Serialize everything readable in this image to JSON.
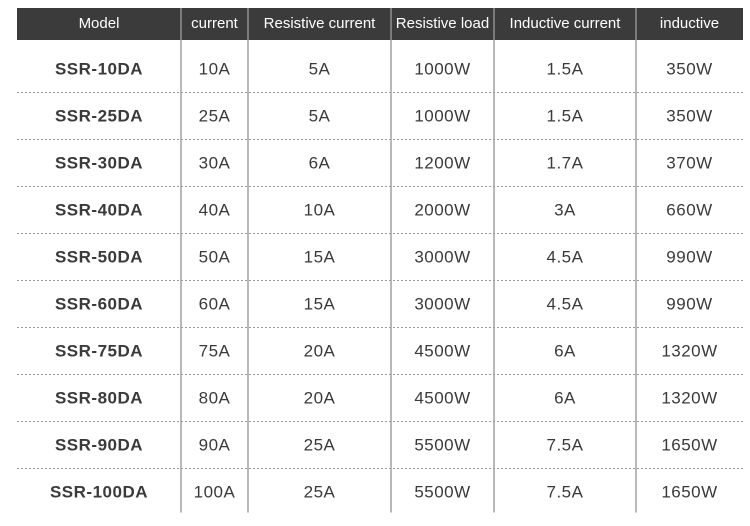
{
  "table": {
    "header": [
      "Model",
      "current",
      "Resistive current",
      "Resistive load",
      "Inductive current",
      "inductive"
    ],
    "rows": [
      [
        "SSR-10DA",
        "10A",
        "5A",
        "1000W",
        "1.5A",
        "350W"
      ],
      [
        "SSR-25DA",
        "25A",
        "5A",
        "1000W",
        "1.5A",
        "350W"
      ],
      [
        "SSR-30DA",
        "30A",
        "6A",
        "1200W",
        "1.7A",
        "370W"
      ],
      [
        "SSR-40DA",
        "40A",
        "10A",
        "2000W",
        "3A",
        "660W"
      ],
      [
        "SSR-50DA",
        "50A",
        "15A",
        "3000W",
        "4.5A",
        "990W"
      ],
      [
        "SSR-60DA",
        "60A",
        "15A",
        "3000W",
        "4.5A",
        "990W"
      ],
      [
        "SSR-75DA",
        "75A",
        "20A",
        "4500W",
        "6A",
        "1320W"
      ],
      [
        "SSR-80DA",
        "80A",
        "20A",
        "4500W",
        "6A",
        "1320W"
      ],
      [
        "SSR-90DA",
        "90A",
        "25A",
        "5500W",
        "7.5A",
        "1650W"
      ],
      [
        "SSR-100DA",
        "100A",
        "25A",
        "5500W",
        "7.5A",
        "1650W"
      ]
    ]
  }
}
